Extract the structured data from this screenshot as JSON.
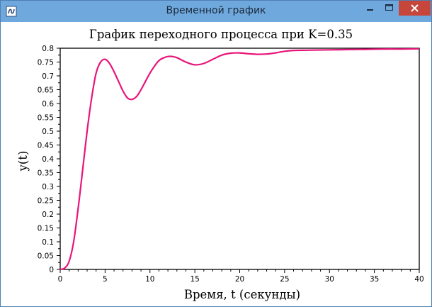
{
  "window": {
    "title": "Временной график"
  },
  "chart_data": {
    "type": "line",
    "title": "График переходного процесса при K=0.35",
    "xlabel": "Время, t (секунды)",
    "ylabel": "y(t)",
    "xlim": [
      0,
      40
    ],
    "ylim": [
      0,
      0.8
    ],
    "x_ticks": [
      "0",
      "5",
      "10",
      "15",
      "20",
      "25",
      "30",
      "35",
      "40"
    ],
    "y_ticks": [
      "0",
      "0.05",
      "0.1",
      "0.15",
      "0.2",
      "0.25",
      "0.3",
      "0.35",
      "0.4",
      "0.45",
      "0.5",
      "0.55",
      "0.6",
      "0.65",
      "0.7",
      "0.75",
      "0.8"
    ],
    "grid": false,
    "line_color": "#e8157a",
    "series": [
      {
        "x": [
          0,
          0.5,
          1,
          1.5,
          2,
          2.5,
          3,
          3.5,
          4,
          4.5,
          5,
          5.5,
          6,
          6.5,
          7,
          7.5,
          8,
          8.5,
          9,
          9.5,
          10,
          10.5,
          11,
          11.5,
          12,
          12.5,
          13,
          14,
          15,
          16,
          17,
          18,
          19,
          20,
          21,
          22,
          23,
          24,
          25,
          26,
          28,
          30,
          32,
          34,
          36,
          38,
          40
        ],
        "y": [
          0,
          0.005,
          0.03,
          0.1,
          0.22,
          0.36,
          0.5,
          0.62,
          0.71,
          0.75,
          0.76,
          0.745,
          0.715,
          0.68,
          0.645,
          0.62,
          0.615,
          0.625,
          0.65,
          0.68,
          0.71,
          0.735,
          0.755,
          0.765,
          0.77,
          0.77,
          0.766,
          0.75,
          0.74,
          0.745,
          0.76,
          0.775,
          0.782,
          0.783,
          0.78,
          0.778,
          0.779,
          0.783,
          0.789,
          0.792,
          0.793,
          0.794,
          0.795,
          0.796,
          0.797,
          0.797,
          0.798
        ]
      }
    ]
  }
}
